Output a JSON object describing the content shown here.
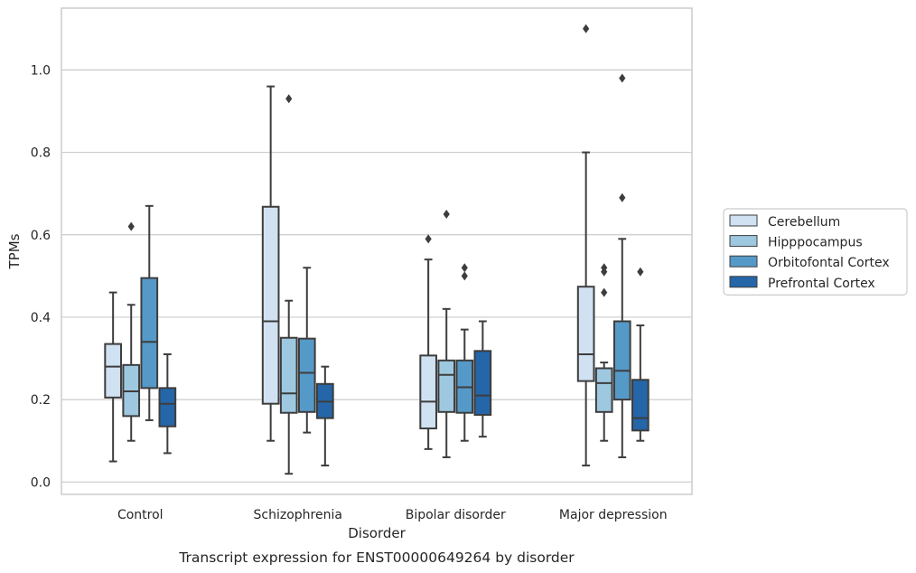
{
  "chart_data": {
    "type": "box",
    "caption": "Transcript expression for ENST00000649264 by disorder",
    "xlabel": "Disorder",
    "ylabel": "TPMs",
    "ylim": [
      -0.03,
      1.15
    ],
    "yticks": [
      0.0,
      0.2,
      0.4,
      0.6,
      0.8,
      1.0
    ],
    "ytick_labels": [
      "0.0",
      "0.2",
      "0.4",
      "0.6",
      "0.8",
      "1.0"
    ],
    "categories": [
      "Control",
      "Schizophrenia",
      "Bipolar disorder",
      "Major depression"
    ],
    "grid": "horizontal",
    "legend_position": "right",
    "series": [
      {
        "name": "Cerebellum",
        "color": "#d0e1f2",
        "boxes": [
          {
            "whislo": 0.05,
            "q1": 0.205,
            "med": 0.28,
            "q3": 0.335,
            "whishi": 0.46,
            "fliers": []
          },
          {
            "whislo": 0.1,
            "q1": 0.19,
            "med": 0.39,
            "q3": 0.668,
            "whishi": 0.96,
            "fliers": []
          },
          {
            "whislo": 0.08,
            "q1": 0.13,
            "med": 0.195,
            "q3": 0.307,
            "whishi": 0.54,
            "fliers": [
              0.59
            ]
          },
          {
            "whislo": 0.04,
            "q1": 0.245,
            "med": 0.31,
            "q3": 0.474,
            "whishi": 0.8,
            "fliers": [
              1.1
            ]
          }
        ]
      },
      {
        "name": "Hipppocampus",
        "color": "#9dc8e0",
        "boxes": [
          {
            "whislo": 0.1,
            "q1": 0.16,
            "med": 0.22,
            "q3": 0.284,
            "whishi": 0.43,
            "fliers": [
              0.62
            ]
          },
          {
            "whislo": 0.02,
            "q1": 0.168,
            "med": 0.215,
            "q3": 0.35,
            "whishi": 0.44,
            "fliers": [
              0.93
            ]
          },
          {
            "whislo": 0.06,
            "q1": 0.17,
            "med": 0.26,
            "q3": 0.295,
            "whishi": 0.42,
            "fliers": [
              0.65
            ]
          },
          {
            "whislo": 0.1,
            "q1": 0.17,
            "med": 0.24,
            "q3": 0.276,
            "whishi": 0.29,
            "fliers": [
              0.46,
              0.51,
              0.52
            ]
          }
        ]
      },
      {
        "name": "Orbitofontal Cortex",
        "color": "#5599c8",
        "boxes": [
          {
            "whislo": 0.15,
            "q1": 0.228,
            "med": 0.34,
            "q3": 0.495,
            "whishi": 0.67,
            "fliers": []
          },
          {
            "whislo": 0.12,
            "q1": 0.17,
            "med": 0.265,
            "q3": 0.348,
            "whishi": 0.52,
            "fliers": []
          },
          {
            "whislo": 0.1,
            "q1": 0.168,
            "med": 0.23,
            "q3": 0.295,
            "whishi": 0.37,
            "fliers": [
              0.5,
              0.52
            ]
          },
          {
            "whislo": 0.06,
            "q1": 0.2,
            "med": 0.27,
            "q3": 0.39,
            "whishi": 0.59,
            "fliers": [
              0.69,
              0.98
            ]
          }
        ]
      },
      {
        "name": "Prefrontal Cortex",
        "color": "#2466a8",
        "boxes": [
          {
            "whislo": 0.07,
            "q1": 0.135,
            "med": 0.19,
            "q3": 0.228,
            "whishi": 0.31,
            "fliers": []
          },
          {
            "whislo": 0.04,
            "q1": 0.155,
            "med": 0.195,
            "q3": 0.238,
            "whishi": 0.28,
            "fliers": []
          },
          {
            "whislo": 0.11,
            "q1": 0.163,
            "med": 0.21,
            "q3": 0.318,
            "whishi": 0.39,
            "fliers": []
          },
          {
            "whislo": 0.1,
            "q1": 0.125,
            "med": 0.155,
            "q3": 0.248,
            "whishi": 0.38,
            "fliers": [
              0.51
            ]
          }
        ]
      }
    ]
  },
  "style": {
    "line_color": "#3d3d3d",
    "grid_color": "#cccccc",
    "frame_color": "#cccccc",
    "background": "#ffffff"
  }
}
